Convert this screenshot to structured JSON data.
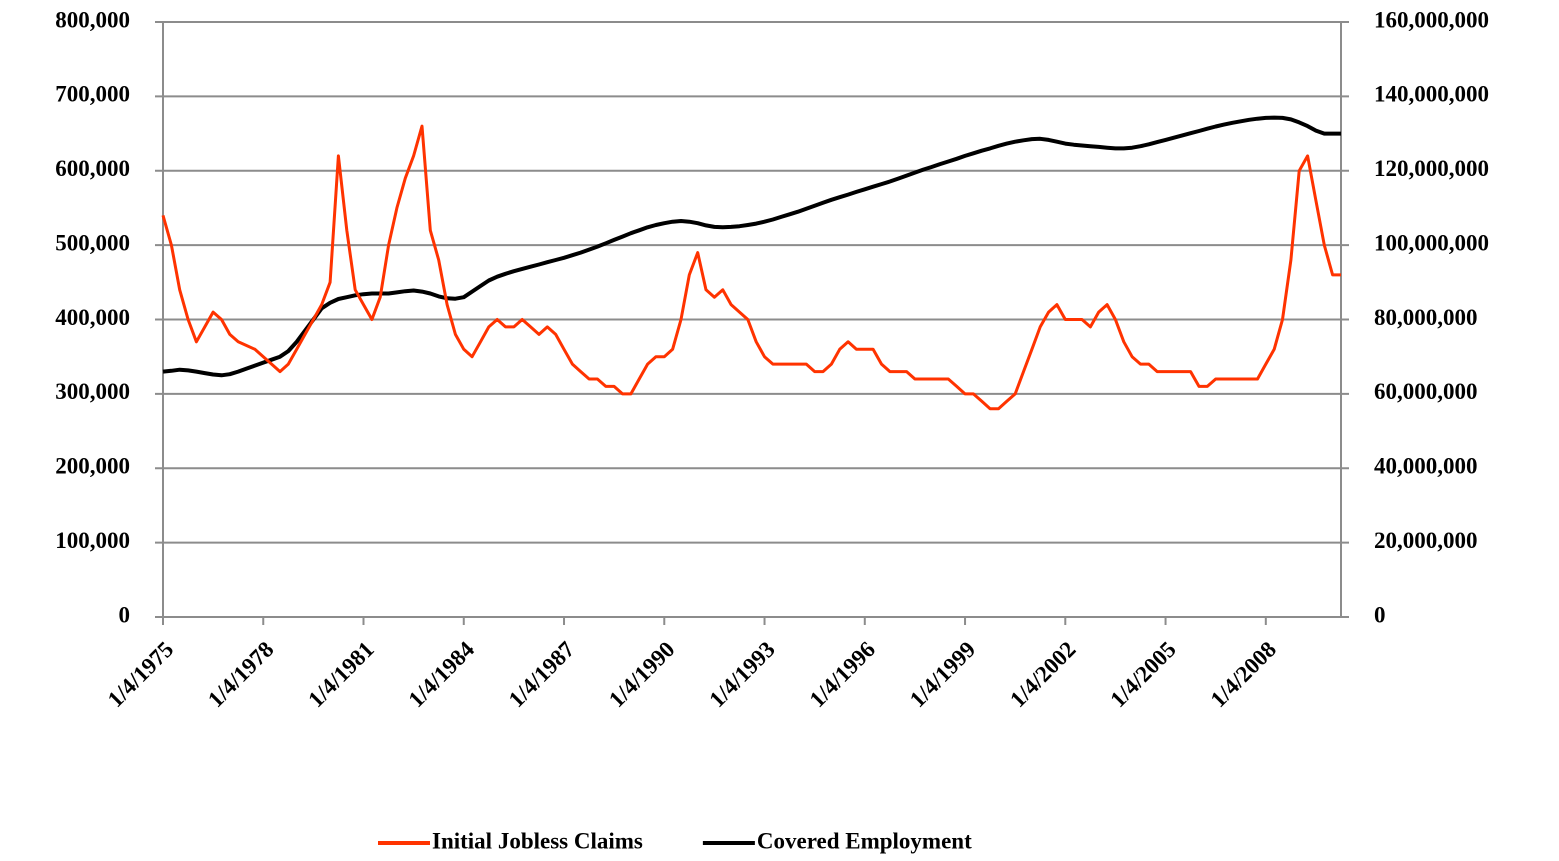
{
  "chart_data": {
    "type": "line",
    "categories": [
      "1/4/1975",
      null,
      null,
      null,
      null,
      null,
      null,
      null,
      null,
      null,
      null,
      null,
      "1/4/1978",
      null,
      null,
      null,
      null,
      null,
      null,
      null,
      null,
      null,
      null,
      null,
      "1/4/1981",
      null,
      null,
      null,
      null,
      null,
      null,
      null,
      null,
      null,
      null,
      null,
      "1/4/1984",
      null,
      null,
      null,
      null,
      null,
      null,
      null,
      null,
      null,
      null,
      null,
      "1/4/1987",
      null,
      null,
      null,
      null,
      null,
      null,
      null,
      null,
      null,
      null,
      null,
      "1/4/1990",
      null,
      null,
      null,
      null,
      null,
      null,
      null,
      null,
      null,
      null,
      null,
      "1/4/1993",
      null,
      null,
      null,
      null,
      null,
      null,
      null,
      null,
      null,
      null,
      null,
      "1/4/1996",
      null,
      null,
      null,
      null,
      null,
      null,
      null,
      null,
      null,
      null,
      null,
      "1/4/1999",
      null,
      null,
      null,
      null,
      null,
      null,
      null,
      null,
      null,
      null,
      null,
      "1/4/2002",
      null,
      null,
      null,
      null,
      null,
      null,
      null,
      null,
      null,
      null,
      null,
      "1/4/2005",
      null,
      null,
      null,
      null,
      null,
      null,
      null,
      null,
      null,
      null,
      null,
      "1/4/2008",
      null,
      null,
      null,
      null,
      null,
      null,
      null,
      null,
      null
    ],
    "series": [
      {
        "name": "Initial Jobless Claims",
        "color": "#ff3300",
        "values": [
          540000,
          500000,
          440000,
          400000,
          370000,
          390000,
          410000,
          400000,
          380000,
          370000,
          365000,
          360000,
          350000,
          340000,
          330000,
          340000,
          360000,
          380000,
          400000,
          420000,
          450000,
          620000,
          520000,
          440000,
          420000,
          400000,
          430000,
          500000,
          550000,
          590000,
          620000,
          660000,
          520000,
          480000,
          420000,
          380000,
          360000,
          350000,
          370000,
          390000,
          400000,
          390000,
          390000,
          400000,
          390000,
          380000,
          390000,
          380000,
          360000,
          340000,
          330000,
          320000,
          320000,
          310000,
          310000,
          300000,
          300000,
          320000,
          340000,
          350000,
          350000,
          360000,
          400000,
          460000,
          490000,
          440000,
          430000,
          440000,
          420000,
          410000,
          400000,
          370000,
          350000,
          340000,
          340000,
          340000,
          340000,
          340000,
          330000,
          330000,
          340000,
          360000,
          370000,
          360000,
          360000,
          360000,
          340000,
          330000,
          330000,
          330000,
          320000,
          320000,
          320000,
          320000,
          320000,
          310000,
          300000,
          300000,
          290000,
          280000,
          280000,
          290000,
          300000,
          330000,
          360000,
          390000,
          410000,
          420000,
          400000,
          400000,
          400000,
          390000,
          410000,
          420000,
          400000,
          370000,
          350000,
          340000,
          340000,
          330000,
          330000,
          330000,
          330000,
          330000,
          310000,
          310000,
          320000,
          320000,
          320000,
          320000,
          320000,
          320000,
          340000,
          360000,
          400000,
          480000,
          600000,
          620000,
          560000,
          500000,
          460000,
          460000
        ]
      },
      {
        "name": "Covered Employment",
        "color": "#000000",
        "axis": "y2",
        "values": [
          66000000,
          66200000,
          66500000,
          66300000,
          66000000,
          65600000,
          65200000,
          65000000,
          65300000,
          66000000,
          66800000,
          67600000,
          68400000,
          69200000,
          70000000,
          71500000,
          74000000,
          77000000,
          80000000,
          83000000,
          84500000,
          85500000,
          86000000,
          86500000,
          86800000,
          87000000,
          87000000,
          87000000,
          87300000,
          87600000,
          87800000,
          87500000,
          87000000,
          86200000,
          85700000,
          85600000,
          86000000,
          87500000,
          89000000,
          90500000,
          91500000,
          92300000,
          93000000,
          93600000,
          94200000,
          94800000,
          95400000,
          96000000,
          96600000,
          97300000,
          98000000,
          98800000,
          99600000,
          100500000,
          101400000,
          102300000,
          103200000,
          104000000,
          104800000,
          105400000,
          105900000,
          106300000,
          106500000,
          106300000,
          105900000,
          105300000,
          104900000,
          104800000,
          104900000,
          105100000,
          105400000,
          105800000,
          106300000,
          106900000,
          107600000,
          108300000,
          109000000,
          109800000,
          110600000,
          111400000,
          112200000,
          112900000,
          113600000,
          114300000,
          115000000,
          115700000,
          116400000,
          117100000,
          117900000,
          118700000,
          119500000,
          120300000,
          121000000,
          121800000,
          122500000,
          123200000,
          124000000,
          124700000,
          125400000,
          126000000,
          126700000,
          127300000,
          127800000,
          128200000,
          128500000,
          128600000,
          128300000,
          127800000,
          127300000,
          127000000,
          126800000,
          126600000,
          126400000,
          126200000,
          126000000,
          126000000,
          126200000,
          126600000,
          127100000,
          127700000,
          128300000,
          128900000,
          129500000,
          130100000,
          130700000,
          131300000,
          131900000,
          132400000,
          132900000,
          133300000,
          133700000,
          134000000,
          134200000,
          134300000,
          134200000,
          133800000,
          133000000,
          132000000,
          130800000,
          130000000,
          130000000,
          130000000
        ]
      }
    ],
    "ylim": [
      0,
      800000
    ],
    "yticks": [
      0,
      {
        "value": 100000,
        "label": "100,000"
      },
      {
        "value": 200000,
        "label": "200,000"
      },
      {
        "value": 300000,
        "label": "300,000"
      },
      {
        "value": 400000,
        "label": "400,000"
      },
      {
        "value": 500000,
        "label": "500,000"
      },
      {
        "value": 600000,
        "label": "600,000"
      },
      {
        "value": 700000,
        "label": "700,000"
      },
      {
        "value": 800000,
        "label": "800,000"
      }
    ],
    "y2lim": [
      0,
      160000000
    ],
    "y2ticks": [
      0,
      {
        "value": 20000000,
        "label": "20,000,000"
      },
      {
        "value": 40000000,
        "label": "40,000,000"
      },
      {
        "value": 60000000,
        "label": "60,000,000"
      },
      {
        "value": 80000000,
        "label": "80,000,000"
      },
      {
        "value": 100000000,
        "label": "100,000,000"
      },
      {
        "value": 120000000,
        "label": "120,000,000"
      },
      {
        "value": 140000000,
        "label": "140,000,000"
      },
      {
        "value": 160000000,
        "label": "160,000,000"
      }
    ],
    "grid": true,
    "legend": "bottom"
  }
}
